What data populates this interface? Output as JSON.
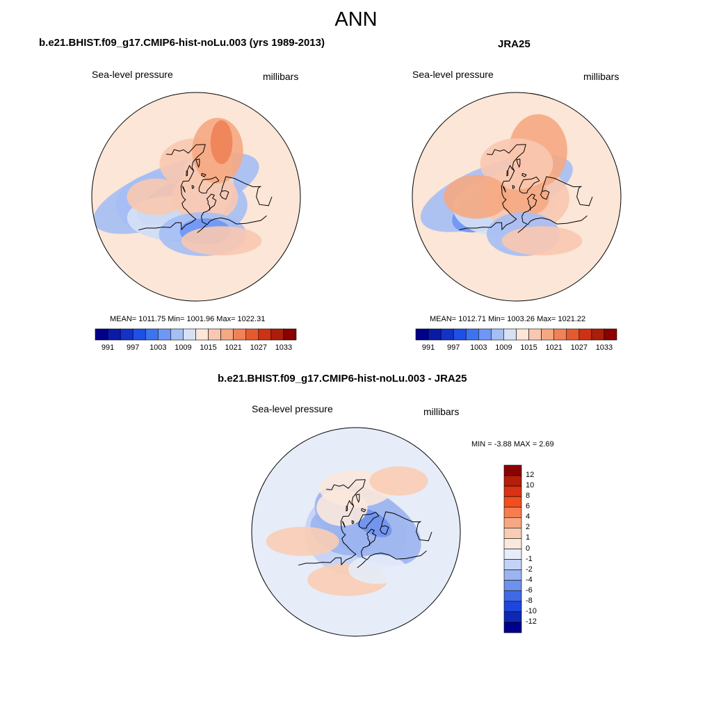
{
  "title": "ANN",
  "panels": [
    {
      "title": "b.e21.BHIST.f09_g17.CMIP6-hist-noLu.003 (yrs 1989-2013)",
      "left_label": "Sea-level pressure",
      "right_label": "millibars",
      "stats": "MEAN= 1011.75  Min= 1001.96  Max= 1022.31"
    },
    {
      "title": "JRA25",
      "left_label": "Sea-level pressure",
      "right_label": "millibars",
      "stats": "MEAN= 1012.71  Min= 1003.26  Max= 1021.22"
    },
    {
      "title": "b.e21.BHIST.f09_g17.CMIP6-hist-noLu.003 - JRA25",
      "left_label": "Sea-level pressure",
      "right_label": "millibars",
      "stats": "MIN =  -3.88 MAX =   2.69"
    }
  ],
  "colorbar_abs": {
    "ticks": [
      "991",
      "997",
      "1003",
      "1009",
      "1015",
      "1021",
      "1027",
      "1033"
    ],
    "colors": [
      "#00008b",
      "#0a1aa8",
      "#1432c8",
      "#1e50e6",
      "#3c73f0",
      "#6e96f5",
      "#a5bef5",
      "#d7e1f5",
      "#fbe6d7",
      "#f9c8b0",
      "#f5a882",
      "#f08257",
      "#e65a30",
      "#cd3214",
      "#aa1e0a",
      "#8b0000"
    ]
  },
  "colorbar_diff": {
    "ticks": [
      "12",
      "10",
      "8",
      "6",
      "4",
      "2",
      "1",
      "0",
      "-1",
      "-2",
      "-4",
      "-6",
      "-8",
      "-10",
      "-12"
    ],
    "colors": [
      "#8b0000",
      "#b41e0a",
      "#dc3214",
      "#f0501e",
      "#f57d50",
      "#f5a882",
      "#f9cdb4",
      "#fbe8dc",
      "#e6ecf8",
      "#c3d2f5",
      "#9bb4f0",
      "#6e91ec",
      "#4169e6",
      "#1e46dc",
      "#0f28b4",
      "#00008b"
    ]
  },
  "map_fields": {
    "model": [
      {
        "lon": 80,
        "lat": 68,
        "sx": 1.2,
        "sy": 0.4,
        "rot": -20,
        "color": "#a5bef5"
      },
      {
        "lon": 120,
        "lat": 72,
        "sx": 0.9,
        "sy": 0.5,
        "rot": 0,
        "color": "#a5bef5"
      },
      {
        "lon": 100,
        "lat": 70,
        "sx": 0.6,
        "sy": 0.25,
        "rot": -25,
        "color": "#6e96f5"
      },
      {
        "lon": -40,
        "lat": 70,
        "sx": 0.35,
        "sy": 0.5,
        "rot": 0,
        "color": "#d7e1f5"
      },
      {
        "lon": 130,
        "lat": 55,
        "sx": 0.6,
        "sy": 0.3,
        "rot": 0,
        "color": "#d7e1f5"
      },
      {
        "lon": -90,
        "lat": 80,
        "sx": 0.45,
        "sy": 0.35,
        "rot": 0,
        "color": "#f9c8b0"
      },
      {
        "lon": 0,
        "lat": 55,
        "sx": 0.5,
        "sy": 0.35,
        "rot": 0,
        "color": "#f9c8b0"
      },
      {
        "lon": -25,
        "lat": 38,
        "sx": 0.35,
        "sy": 0.45,
        "rot": 0,
        "color": "#f5a882"
      },
      {
        "lon": -25,
        "lat": 30,
        "sx": 0.15,
        "sy": 0.3,
        "rot": 0,
        "color": "#f08257"
      },
      {
        "lon": 90,
        "lat": 48,
        "sx": 0.4,
        "sy": 0.25,
        "rot": 0,
        "color": "#f9c8b0"
      },
      {
        "lon": -170,
        "lat": 50,
        "sx": 0.6,
        "sy": 0.3,
        "rot": 0,
        "color": "#a5bef5"
      },
      {
        "lon": -165,
        "lat": 52,
        "sx": 0.35,
        "sy": 0.18,
        "rot": 0,
        "color": "#6e96f5"
      },
      {
        "lon": -150,
        "lat": 38,
        "sx": 0.55,
        "sy": 0.2,
        "rot": 0,
        "color": "#f9c8b0"
      }
    ],
    "obs": [
      {
        "lon": 80,
        "lat": 68,
        "sx": 1.1,
        "sy": 0.4,
        "rot": -20,
        "color": "#a5bef5"
      },
      {
        "lon": 110,
        "lat": 70,
        "sx": 0.7,
        "sy": 0.3,
        "rot": -25,
        "color": "#6e96f5"
      },
      {
        "lon": 130,
        "lat": 72,
        "sx": 0.7,
        "sy": 0.4,
        "rot": 0,
        "color": "#d7e1f5"
      },
      {
        "lon": -100,
        "lat": 80,
        "sx": 0.6,
        "sy": 0.45,
        "rot": 0,
        "color": "#f9c8b0"
      },
      {
        "lon": -100,
        "lat": 82,
        "sx": 0.35,
        "sy": 0.25,
        "rot": 0,
        "color": "#f5a882"
      },
      {
        "lon": -25,
        "lat": 38,
        "sx": 0.4,
        "sy": 0.5,
        "rot": 0,
        "color": "#f5a882"
      },
      {
        "lon": 0,
        "lat": 55,
        "sx": 0.5,
        "sy": 0.35,
        "rot": 0,
        "color": "#f9c8b0"
      },
      {
        "lon": 90,
        "lat": 48,
        "sx": 0.45,
        "sy": 0.3,
        "rot": 0,
        "color": "#f5a882"
      },
      {
        "lon": -170,
        "lat": 50,
        "sx": 0.5,
        "sy": 0.3,
        "rot": 0,
        "color": "#a5bef5"
      },
      {
        "lon": -150,
        "lat": 38,
        "sx": 0.55,
        "sy": 0.2,
        "rot": 0,
        "color": "#f9c8b0"
      }
    ],
    "diff": [
      {
        "lon": 0,
        "lat": 90,
        "sx": 0.7,
        "sy": 0.6,
        "rot": 0,
        "color": "#c3d2f5"
      },
      {
        "lon": -60,
        "lat": 75,
        "sx": 0.8,
        "sy": 0.45,
        "rot": 30,
        "color": "#9bb4f0"
      },
      {
        "lon": 90,
        "lat": 75,
        "sx": 0.45,
        "sy": 0.3,
        "rot": 20,
        "color": "#9bb4f0"
      },
      {
        "lon": -60,
        "lat": 70,
        "sx": 0.3,
        "sy": 0.15,
        "rot": 30,
        "color": "#6e91ec"
      },
      {
        "lon": 30,
        "lat": 60,
        "sx": 0.35,
        "sy": 0.25,
        "rot": 0,
        "color": "#fbe8dc"
      },
      {
        "lon": 0,
        "lat": 45,
        "sx": 0.5,
        "sy": 0.25,
        "rot": 0,
        "color": "#fbe8dc"
      },
      {
        "lon": -40,
        "lat": 25,
        "sx": 0.4,
        "sy": 0.2,
        "rot": 0,
        "color": "#f9cdb4"
      },
      {
        "lon": 100,
        "lat": 35,
        "sx": 0.5,
        "sy": 0.2,
        "rot": 0,
        "color": "#f9cdb4"
      },
      {
        "lon": 170,
        "lat": 40,
        "sx": 0.55,
        "sy": 0.22,
        "rot": 0,
        "color": "#f9cdb4"
      },
      {
        "lon": -150,
        "lat": 45,
        "sx": 0.4,
        "sy": 0.2,
        "rot": 0,
        "color": "#e6ecf8"
      }
    ]
  }
}
